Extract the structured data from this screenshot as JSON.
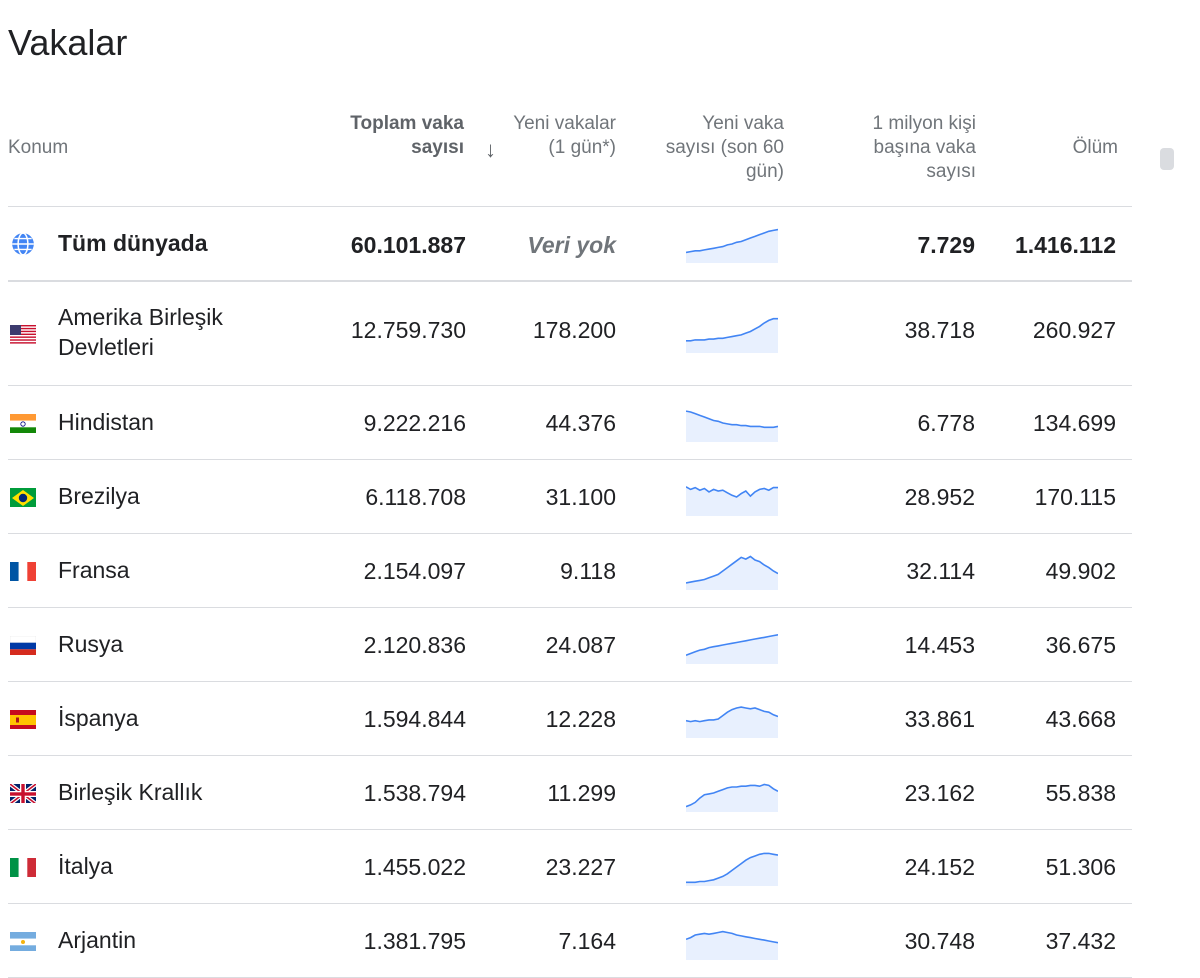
{
  "page": {
    "title": "Vakalar"
  },
  "columns": {
    "location": "Konum",
    "total": "Toplam vaka sayısı",
    "new_cases": "Yeni vakalar (1 gün*)",
    "trend": "Yeni vaka sayısı (son 60 gün)",
    "per_million": "1 milyon kişi başına vaka sayısı",
    "deaths": "Ölüm",
    "sort_icon": "arrow-down-icon"
  },
  "world": {
    "name": "Tüm dünyada",
    "icon": "globe-icon",
    "total": "60.101.887",
    "new": "Veri yok",
    "per_million": "7.729",
    "deaths": "1.416.112",
    "trend": [
      10,
      11,
      12,
      12,
      13,
      14,
      15,
      16,
      17,
      19,
      20,
      22,
      23,
      25,
      27,
      29,
      31,
      33,
      35,
      36,
      37
    ]
  },
  "rows": [
    {
      "name": "Amerika Birleşik Devletleri",
      "flag": "us-flag-icon",
      "total": "12.759.730",
      "new": "178.200",
      "per_million": "38.718",
      "deaths": "260.927",
      "trend": [
        12,
        12,
        13,
        13,
        13,
        14,
        14,
        15,
        15,
        16,
        17,
        18,
        19,
        21,
        23,
        26,
        29,
        33,
        36,
        38,
        38
      ]
    },
    {
      "name": "Hindistan",
      "flag": "india-flag-icon",
      "total": "9.222.216",
      "new": "44.376",
      "per_million": "6.778",
      "deaths": "134.699",
      "trend": [
        34,
        33,
        31,
        29,
        27,
        25,
        23,
        22,
        20,
        19,
        18,
        18,
        17,
        17,
        16,
        16,
        16,
        15,
        15,
        15,
        16
      ]
    },
    {
      "name": "Brezilya",
      "flag": "brazil-flag-icon",
      "total": "6.118.708",
      "new": "31.100",
      "per_million": "28.952",
      "deaths": "170.115",
      "trend": [
        32,
        29,
        31,
        28,
        30,
        26,
        29,
        27,
        28,
        25,
        22,
        20,
        24,
        27,
        21,
        26,
        29,
        30,
        28,
        31,
        31
      ]
    },
    {
      "name": "Fransa",
      "flag": "france-flag-icon",
      "total": "2.154.097",
      "new": "9.118",
      "per_million": "32.114",
      "deaths": "49.902",
      "trend": [
        6,
        7,
        8,
        9,
        10,
        12,
        14,
        16,
        20,
        24,
        28,
        32,
        36,
        34,
        37,
        33,
        31,
        27,
        24,
        20,
        17
      ]
    },
    {
      "name": "Rusya",
      "flag": "russia-flag-icon",
      "total": "2.120.836",
      "new": "24.087",
      "per_million": "14.453",
      "deaths": "36.675",
      "trend": [
        8,
        10,
        12,
        14,
        15,
        17,
        18,
        19,
        20,
        21,
        22,
        23,
        24,
        25,
        26,
        27,
        28,
        29,
        30,
        31,
        32
      ]
    },
    {
      "name": "İspanya",
      "flag": "spain-flag-icon",
      "total": "1.594.844",
      "new": "12.228",
      "per_million": "33.861",
      "deaths": "43.668",
      "trend": [
        18,
        17,
        18,
        17,
        18,
        19,
        19,
        20,
        24,
        28,
        31,
        33,
        34,
        33,
        32,
        33,
        31,
        29,
        28,
        25,
        23
      ]
    },
    {
      "name": "Birleşik Krallık",
      "flag": "uk-flag-icon",
      "total": "1.538.794",
      "new": "11.299",
      "per_million": "23.162",
      "deaths": "55.838",
      "trend": [
        4,
        6,
        9,
        14,
        18,
        19,
        20,
        22,
        24,
        26,
        27,
        27,
        28,
        28,
        29,
        29,
        28,
        30,
        29,
        25,
        22
      ]
    },
    {
      "name": "İtalya",
      "flag": "italy-flag-icon",
      "total": "1.455.022",
      "new": "23.227",
      "per_million": "24.152",
      "deaths": "51.306",
      "trend": [
        2,
        2,
        2,
        3,
        3,
        4,
        5,
        7,
        9,
        12,
        16,
        20,
        24,
        28,
        31,
        33,
        35,
        36,
        36,
        35,
        34
      ]
    },
    {
      "name": "Arjantin",
      "flag": "argentina-flag-icon",
      "total": "1.381.795",
      "new": "7.164",
      "per_million": "30.748",
      "deaths": "37.432",
      "trend": [
        22,
        24,
        27,
        28,
        29,
        28,
        29,
        30,
        31,
        30,
        29,
        27,
        26,
        25,
        24,
        23,
        22,
        21,
        20,
        19,
        18
      ]
    }
  ],
  "colors": {
    "accent": "#4285f4",
    "area": "#e8f0fe",
    "border": "#dadce0",
    "muted": "#70757a"
  }
}
